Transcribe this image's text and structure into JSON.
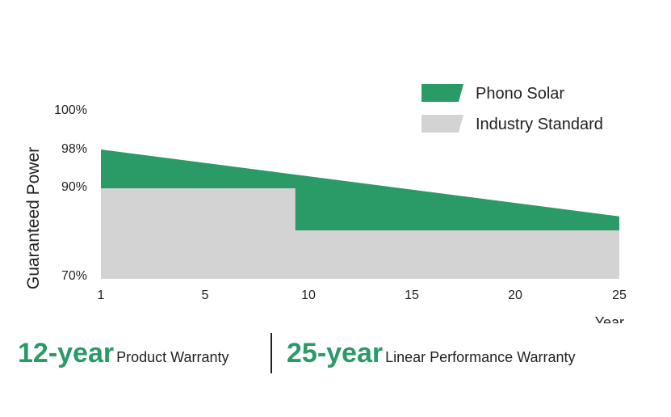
{
  "colors": {
    "phono": "#2a9a66",
    "industry": "#d3d3d3",
    "text": "#231f20"
  },
  "chart_data": {
    "type": "area",
    "ylabel": "Guaranteed Power",
    "xlabel": "Year",
    "x_ticks": [
      "1",
      "5",
      "10",
      "15",
      "20",
      "25"
    ],
    "y_ticks": [
      {
        "label": "100%",
        "value": 100
      },
      {
        "label": "98%",
        "value": 98
      },
      {
        "label": "90%",
        "value": 90
      },
      {
        "label": "70%",
        "value": 70
      }
    ],
    "legend": {
      "position": "top-right",
      "entries": [
        "Phono Solar",
        "Industry Standard"
      ]
    },
    "series": [
      {
        "name": "Phono Solar",
        "x": [
          1,
          25
        ],
        "y": [
          98,
          83.8
        ]
      },
      {
        "name": "Industry Standard",
        "x": [
          1,
          10,
          10,
          25
        ],
        "y": [
          90,
          90,
          80.7,
          80.7
        ]
      }
    ]
  },
  "warranties": [
    {
      "big": "12-year",
      "small": "Product Warranty"
    },
    {
      "big": "25-year",
      "small": "Linear Performance Warranty"
    }
  ]
}
